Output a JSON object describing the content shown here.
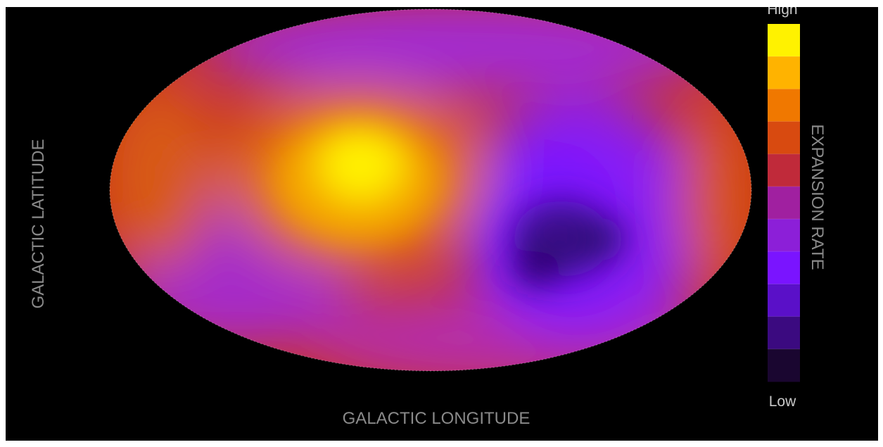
{
  "chart_data": {
    "type": "heatmap",
    "projection": "Mollweide all-sky",
    "x_label": "GALACTIC LONGITUDE",
    "y_label": "GALACTIC LATITUDE",
    "colorbar": {
      "label": "EXPANSION RATE",
      "high_label": "High",
      "low_label": "Low",
      "colors": [
        "#fff200",
        "#ffb300",
        "#f07800",
        "#d84a10",
        "#c02a3a",
        "#a020a0",
        "#8c1fd8",
        "#7a14ff",
        "#5a10c8",
        "#3b0a80",
        "#1a0630"
      ]
    },
    "background_color": "#000000"
  }
}
